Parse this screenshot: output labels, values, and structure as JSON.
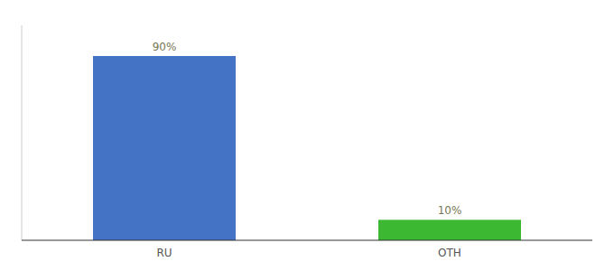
{
  "chart_data": {
    "type": "bar",
    "categories": [
      "RU",
      "OTH"
    ],
    "values": [
      90,
      10
    ],
    "colors": [
      "#4472c4",
      "#3cb832"
    ],
    "ylim": [
      0,
      105
    ],
    "data_labels": true,
    "value_labels": [
      "90%",
      "10%"
    ],
    "tick_labels": "x",
    "grid": false
  }
}
